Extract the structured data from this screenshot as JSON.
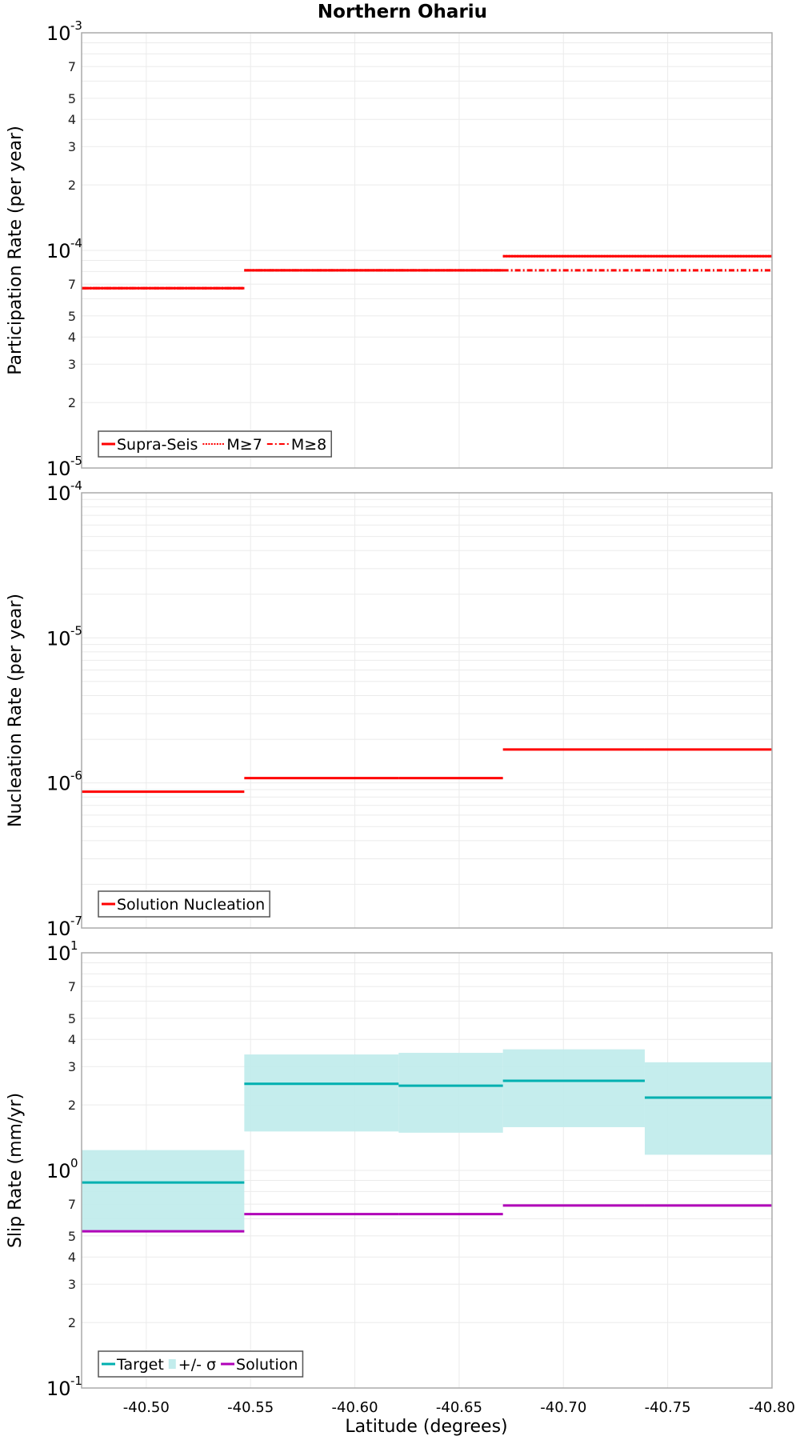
{
  "chart_data": {
    "type": "line",
    "title": "Northern Ohariu",
    "xlabel": "Latitude (degrees)",
    "xlim": [
      -40.469,
      -40.8
    ],
    "x_ticks": [
      "-40.50",
      "-40.55",
      "-40.60",
      "-40.65",
      "-40.70",
      "-40.75",
      "-40.80"
    ],
    "x_tick_values": [
      -40.5,
      -40.55,
      -40.6,
      -40.65,
      -40.7,
      -40.75,
      -40.8
    ],
    "segments_x": [
      [
        -40.469,
        -40.547
      ],
      [
        -40.547,
        -40.621
      ],
      [
        -40.621,
        -40.671
      ],
      [
        -40.671,
        -40.739
      ],
      [
        -40.739,
        -40.8
      ]
    ],
    "grid": true,
    "panels": [
      {
        "name": "participation",
        "ylabel": "Participation Rate (per year)",
        "yscale": "log",
        "ylim": [
          1e-05,
          0.001
        ],
        "log_range": [
          -5,
          -3
        ],
        "minor_labels": [
          2,
          3,
          4,
          5,
          7
        ],
        "legend": {
          "position": "lower-left",
          "entries": [
            {
              "label": "Supra-Seis",
              "style": "solid",
              "color": "#ff0000"
            },
            {
              "label": "M≥7",
              "style": "dotted",
              "color": "#ff0000"
            },
            {
              "label": "M≥8",
              "style": "dashdot",
              "color": "#ff0000"
            }
          ]
        },
        "series": [
          {
            "name": "Supra-Seis",
            "style": "solid",
            "color": "#ff0000",
            "values": [
              6.7e-05,
              8.1e-05,
              8.1e-05,
              9.4e-05,
              9.4e-05
            ]
          },
          {
            "name": "M≥7",
            "style": "dotted",
            "color": "#ff0000",
            "values": [
              6.7e-05,
              8.1e-05,
              8.1e-05,
              9.4e-05,
              9.4e-05
            ]
          },
          {
            "name": "M≥8",
            "style": "dashdot",
            "color": "#ff0000",
            "values": [
              6.7e-05,
              8.1e-05,
              8.1e-05,
              8.1e-05,
              8.1e-05
            ]
          }
        ]
      },
      {
        "name": "nucleation",
        "ylabel": "Nucleation Rate (per year)",
        "yscale": "log",
        "ylim": [
          1e-07,
          0.0001
        ],
        "log_range": [
          -7,
          -4
        ],
        "minor_labels": [],
        "legend": {
          "position": "lower-left",
          "entries": [
            {
              "label": "Solution Nucleation",
              "style": "solid",
              "color": "#ff0000"
            }
          ]
        },
        "series": [
          {
            "name": "Solution Nucleation",
            "style": "solid",
            "color": "#ff0000",
            "values": [
              8.7e-07,
              1.08e-06,
              1.08e-06,
              1.7e-06,
              1.7e-06
            ]
          }
        ]
      },
      {
        "name": "slip-rate",
        "ylabel": "Slip Rate (mm/yr)",
        "yscale": "log",
        "ylim": [
          0.1,
          10
        ],
        "log_range": [
          -1,
          1
        ],
        "minor_labels": [
          2,
          3,
          4,
          5,
          7
        ],
        "legend": {
          "position": "lower-left",
          "entries": [
            {
              "label": "Target",
              "style": "solid",
              "color": "#00b0b0"
            },
            {
              "label": "+/- σ",
              "style": "band",
              "color": "#c2ecec"
            },
            {
              "label": "Solution",
              "style": "solid",
              "color": "#b000b8"
            }
          ]
        },
        "bands": [
          {
            "name": "+/- σ",
            "color": "#c2ecec",
            "upper": [
              1.24,
              3.41,
              3.47,
              3.6,
              3.14
            ],
            "lower": [
              0.53,
              1.51,
              1.49,
              1.58,
              1.18
            ]
          }
        ],
        "series": [
          {
            "name": "Target",
            "style": "solid",
            "color": "#00b0b0",
            "values": [
              0.88,
              2.5,
              2.45,
              2.58,
              2.16
            ]
          },
          {
            "name": "Solution",
            "style": "solid",
            "color": "#b000b8",
            "values": [
              0.525,
              0.63,
              0.63,
              0.69,
              0.69
            ]
          }
        ]
      }
    ]
  },
  "layout_labels": {
    "title": "Northern Ohariu",
    "xlabel": "Latitude (degrees)"
  }
}
